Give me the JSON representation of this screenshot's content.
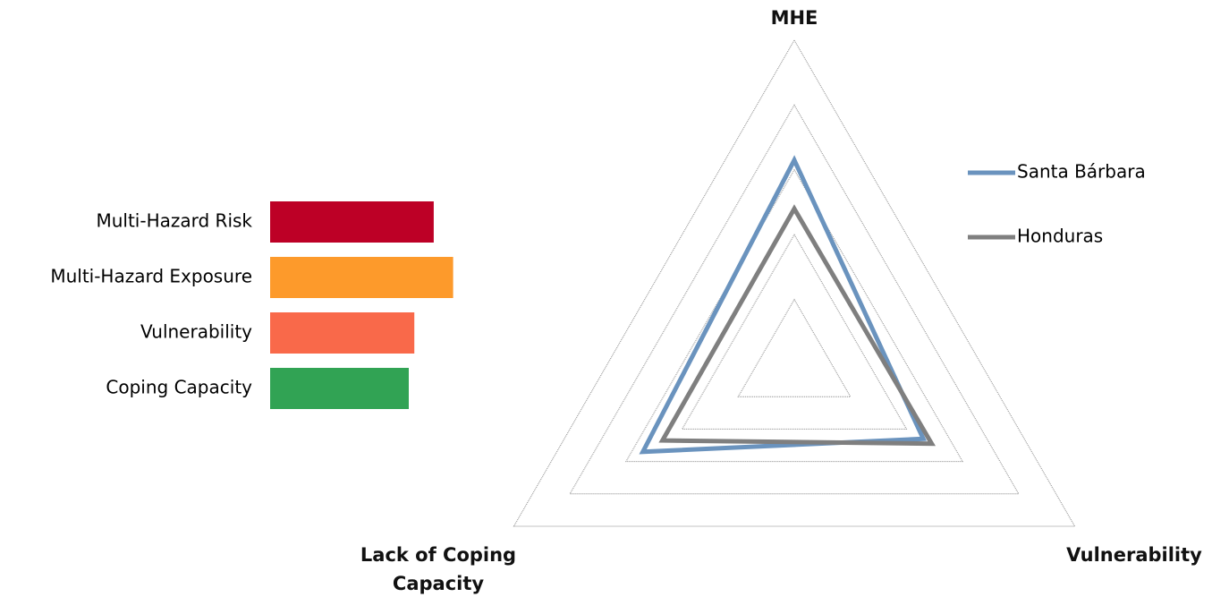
{
  "chart_data": [
    {
      "type": "hbar",
      "categories": [
        "Multi-Hazard Risk",
        "Multi-Hazard Exposure",
        "Vulnerability",
        "Coping Capacity"
      ],
      "values": [
        5.9,
        6.6,
        5.2,
        5.0
      ],
      "colors": [
        "#bd0026",
        "#fd9a2b",
        "#f9694a",
        "#31a354"
      ],
      "xlim": [
        0,
        10
      ]
    },
    {
      "type": "radar",
      "categories": [
        "MHE",
        "Vulnerability",
        "Lack of Coping Capacity"
      ],
      "series": [
        {
          "name": "Santa Bárbara",
          "color": "#6a93be",
          "values": [
            6.3,
            4.6,
            5.4
          ]
        },
        {
          "name": "Honduras",
          "color": "#7f7f7f",
          "values": [
            4.8,
            4.9,
            4.7
          ]
        }
      ],
      "rlim": [
        0,
        10
      ],
      "rticks": [
        2,
        4,
        6,
        8,
        10
      ],
      "grid": true,
      "legend": "right"
    }
  ]
}
